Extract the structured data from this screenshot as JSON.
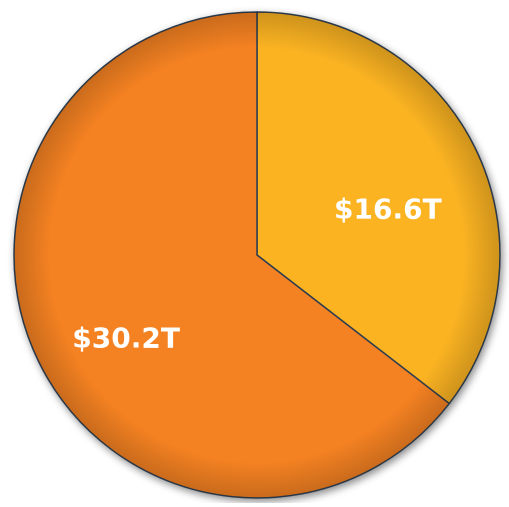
{
  "chart_data": {
    "type": "pie",
    "values": [
      16.6,
      30.2
    ],
    "value_labels": [
      "$16.6T",
      "$30.2T"
    ],
    "colors": [
      "#fbb323",
      "#f58220"
    ],
    "start_angle": 0,
    "direction": "clockwise"
  }
}
